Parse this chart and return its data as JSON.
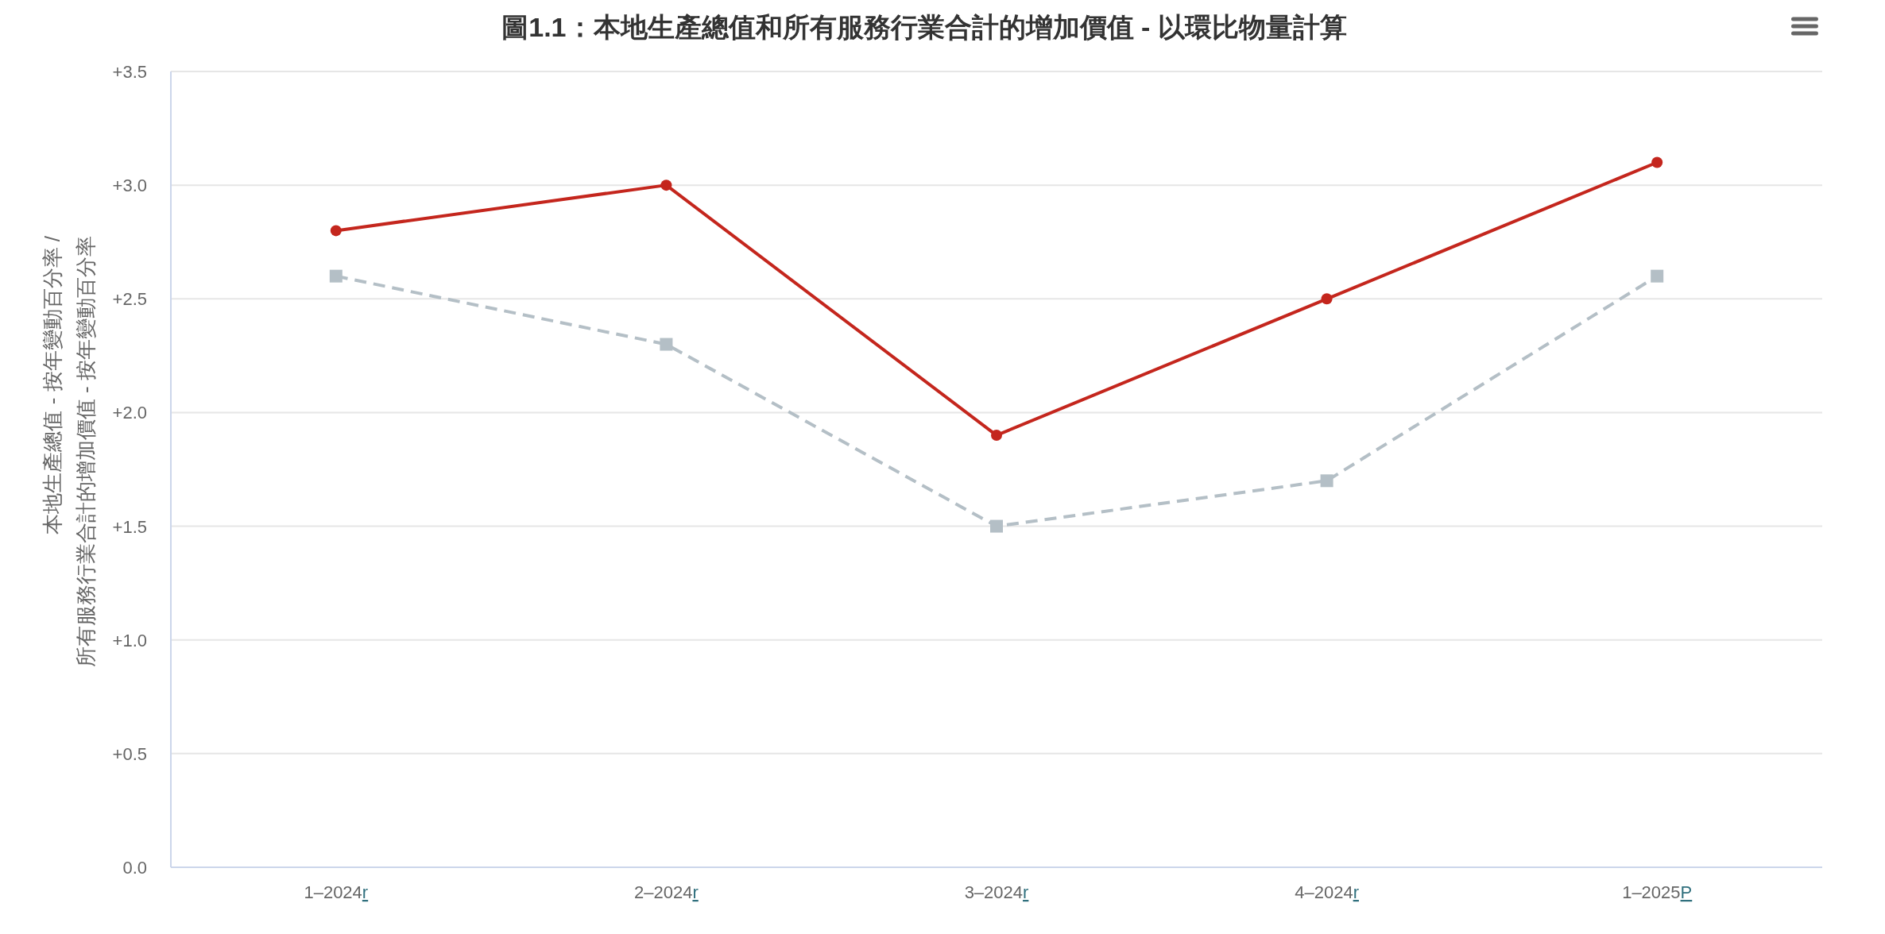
{
  "chart_data": {
    "type": "line",
    "title": "圖1.1：本地生產總值和所有服務行業合計的增加價值 - 以環比物量計算",
    "ylabel": "本地生產總值 - 按年變動百分率 /\n所有服務行業合計的增加價值 - 按年變動百分率",
    "categories": [
      "1–2024r",
      "2–2024r",
      "3–2024r",
      "4–2024r",
      "1–2025P"
    ],
    "series": [
      {
        "color": "#c4261d",
        "marker": "circle",
        "line_style": "solid",
        "values": [
          2.8,
          3.0,
          1.9,
          2.5,
          3.1
        ]
      },
      {
        "color": "#b4bfc6",
        "marker": "square",
        "line_style": "dashed",
        "values": [
          2.6,
          2.3,
          1.5,
          1.7,
          2.6
        ]
      }
    ],
    "ylim": [
      0,
      3.5
    ],
    "yticks": [
      {
        "value": 0,
        "label": "0.0"
      },
      {
        "value": 0.5,
        "label": "+0.5"
      },
      {
        "value": 1,
        "label": "+1.0"
      },
      {
        "value": 1.5,
        "label": "+1.5"
      },
      {
        "value": 2,
        "label": "+2.0"
      },
      {
        "value": 2.5,
        "label": "+2.5"
      },
      {
        "value": 3,
        "label": "+3.0"
      },
      {
        "value": 3.5,
        "label": "+3.5"
      }
    ],
    "grid": "y"
  }
}
